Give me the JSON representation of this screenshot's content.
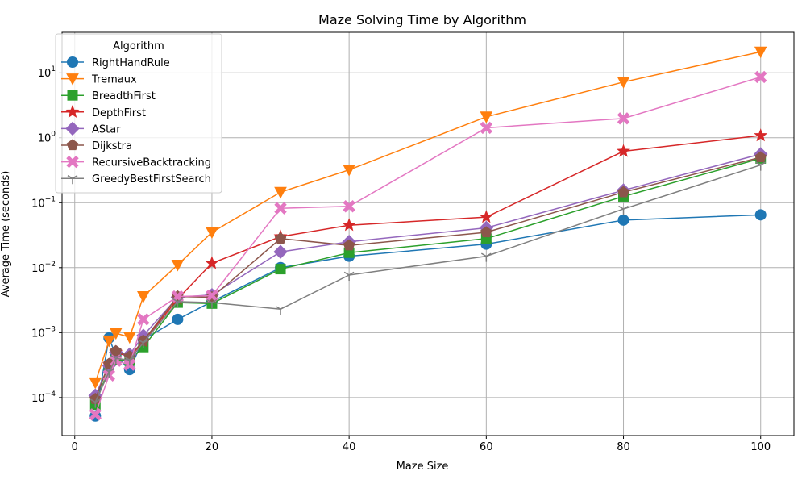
{
  "chart_data": {
    "type": "line",
    "title": "Maze Solving Time by Algorithm",
    "xlabel": "Maze Size",
    "ylabel": "Average Time (seconds)",
    "yscale": "log",
    "xlim": [
      -1.85,
      104.85
    ],
    "ylim": [
      2.6e-05,
      42
    ],
    "x_ticks": [
      0,
      20,
      40,
      60,
      80,
      100
    ],
    "y_ticks": [
      {
        "value": 0.0001,
        "label": "10",
        "exp": "−4"
      },
      {
        "value": 0.001,
        "label": "10",
        "exp": "−3"
      },
      {
        "value": 0.01,
        "label": "10",
        "exp": "−2"
      },
      {
        "value": 0.1,
        "label": "10",
        "exp": "−1"
      },
      {
        "value": 1,
        "label": "10",
        "exp": "0"
      },
      {
        "value": 10,
        "label": "10",
        "exp": "1"
      }
    ],
    "grid": true,
    "legend": {
      "title": "Algorithm",
      "placement": "top-left"
    },
    "x": [
      3,
      5,
      6,
      8,
      10,
      15,
      20,
      30,
      40,
      60,
      80,
      100
    ],
    "series": [
      {
        "name": "RightHandRule",
        "color": "#1f77b4",
        "marker": "circle",
        "values": [
          5.2e-05,
          0.00083,
          0.00044,
          0.00027,
          0.00078,
          0.0016,
          0.003,
          0.01,
          0.015,
          0.023,
          0.054,
          0.065
        ]
      },
      {
        "name": "Tremaux",
        "color": "#ff7f0e",
        "marker": "triangle-down",
        "values": [
          0.00017,
          0.00075,
          0.00098,
          0.00085,
          0.0036,
          0.011,
          0.035,
          0.145,
          0.32,
          2.1,
          7.2,
          21.0
        ]
      },
      {
        "name": "BreadthFirst",
        "color": "#2ca02c",
        "marker": "square",
        "values": [
          7.8e-05,
          0.00029,
          0.00038,
          0.00037,
          0.0006,
          0.0029,
          0.0028,
          0.0095,
          0.017,
          0.028,
          0.125,
          0.48
        ]
      },
      {
        "name": "DepthFirst",
        "color": "#d62728",
        "marker": "star",
        "values": [
          0.000105,
          0.00032,
          0.0005,
          0.00042,
          0.00073,
          0.0033,
          0.0117,
          0.03,
          0.045,
          0.06,
          0.62,
          1.08
        ]
      },
      {
        "name": "AStar",
        "color": "#9467bd",
        "marker": "diamond",
        "values": [
          0.000108,
          0.00031,
          0.0005,
          0.00046,
          0.0009,
          0.0035,
          0.0038,
          0.0175,
          0.025,
          0.041,
          0.155,
          0.56
        ]
      },
      {
        "name": "Dijkstra",
        "color": "#8c564b",
        "marker": "pentagon",
        "values": [
          9.5e-05,
          0.00033,
          0.00052,
          0.00043,
          0.00075,
          0.0036,
          0.0035,
          0.028,
          0.022,
          0.035,
          0.145,
          0.5
        ]
      },
      {
        "name": "RecursiveBacktracking",
        "color": "#e377c2",
        "marker": "x",
        "values": [
          5.5e-05,
          0.00022,
          0.00037,
          0.00032,
          0.0016,
          0.0036,
          0.0037,
          0.082,
          0.088,
          1.42,
          1.98,
          8.6
        ]
      },
      {
        "name": "GreedyBestFirstSearch",
        "color": "#7f7f7f",
        "marker": "tri-down",
        "values": [
          8.5e-05,
          0.00025,
          0.0004,
          0.00038,
          0.0007,
          0.003,
          0.0029,
          0.0023,
          0.0077,
          0.015,
          0.08,
          0.38
        ]
      }
    ]
  }
}
